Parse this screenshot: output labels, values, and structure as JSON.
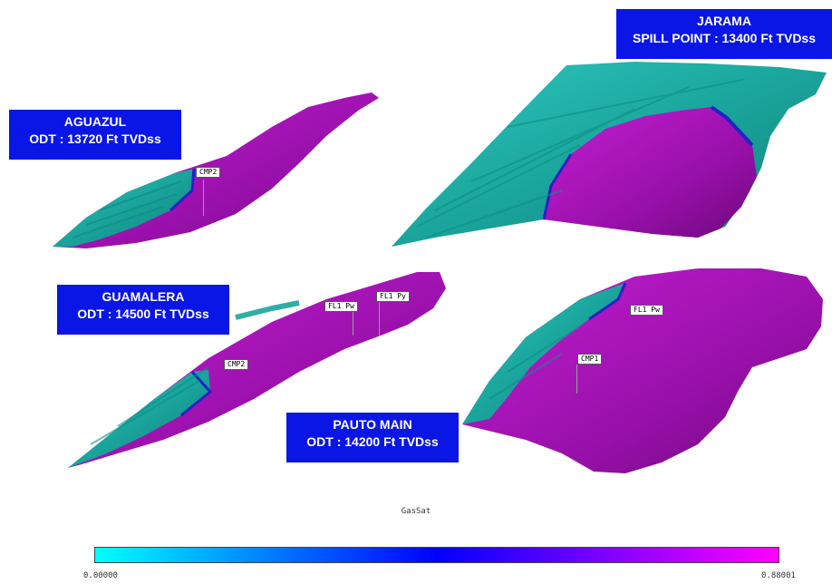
{
  "fields": [
    {
      "id": "aguazul",
      "name": "AGUAZUL",
      "contact": "ODT : 13720 Ft TVDss"
    },
    {
      "id": "jarama",
      "name": "JARAMA",
      "contact": "SPILL POINT : 13400 Ft TVDss"
    },
    {
      "id": "guamalera",
      "name": "GUAMALERA",
      "contact": "ODT : 14500 Ft TVDss"
    },
    {
      "id": "pauto",
      "name": "PAUTO MAIN",
      "contact": "ODT : 14200 Ft TVDss"
    }
  ],
  "wells": {
    "aguazul_cmp2": "CMP2",
    "guamalera_fl1pw": "FL1 Pw",
    "guamalera_fl1py": "FL1 Py",
    "guamalera_cmp2": "CMP2",
    "pauto_fl1pw": "FL1 Pw",
    "pauto_cmp1": "CMP1"
  },
  "colorbar": {
    "title": "GasSat",
    "min_label": "0.00000",
    "max_label": "0.88001",
    "colors": [
      "#00ffff",
      "#0000ff",
      "#ff00ff"
    ]
  },
  "colors": {
    "label_bg": "#0a16e6",
    "water": "#1aa59c",
    "gas": "#a020b0"
  }
}
